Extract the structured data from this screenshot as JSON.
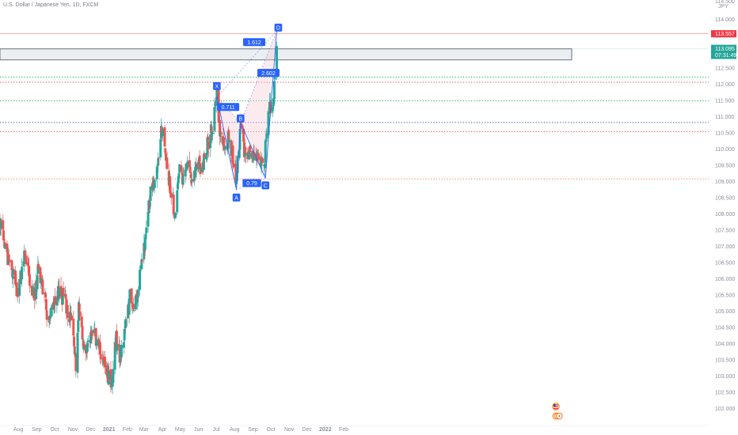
{
  "header": {
    "symbol_name": "U.S. Dollar / Japanese Yen",
    "interval": "1D",
    "exchange": "FXCM",
    "separator": ", "
  },
  "price_axis": {
    "currency_label": "JPY",
    "top_partial_label": "114.500",
    "tick_labels": [
      "114.000",
      "113.500",
      "113.000",
      "112.500",
      "112.000",
      "111.500",
      "111.000",
      "110.500",
      "110.000",
      "109.500",
      "109.000",
      "108.500",
      "108.000",
      "107.500",
      "107.000",
      "106.500",
      "106.000",
      "105.500",
      "105.000",
      "104.500",
      "104.000",
      "103.500",
      "103.000",
      "102.500",
      "102.000"
    ],
    "tick_values": [
      114.0,
      113.5,
      113.0,
      112.5,
      112.0,
      111.5,
      111.0,
      110.5,
      110.0,
      109.5,
      109.0,
      108.5,
      108.0,
      107.5,
      107.0,
      106.5,
      106.0,
      105.5,
      105.0,
      104.5,
      104.0,
      103.5,
      103.0,
      102.5,
      102.0
    ],
    "target_badge": {
      "label": "113.557",
      "value": 113.557,
      "color": "#f23645"
    },
    "last_price_badge": {
      "label": "113.095",
      "countdown": "07:31:49",
      "value": 113.095,
      "color": "#26a69a"
    }
  },
  "time_axis": {
    "labels": [
      "Aug",
      "Sep",
      "Oct",
      "Nov",
      "Dec",
      "2021",
      "Feb",
      "Mar",
      "Apr",
      "May",
      "Jun",
      "Jul",
      "Aug",
      "Sep",
      "Oct",
      "Nov",
      "Dec",
      "2022",
      "Feb"
    ],
    "bold_labels": [
      "2021",
      "2022"
    ]
  },
  "colors": {
    "up_candle": "#26a69a",
    "down_candle": "#ef5350",
    "pattern_line": "#2962ff",
    "pattern_fill": "#f7c6cf",
    "point_label_bg": "#2962ff",
    "green_level": "#00b050",
    "red_level": "#f23645",
    "blue_level": "#3346c8",
    "orange_level": "#ff7a45",
    "target_line": "#f2a095",
    "axis_text": "#8a8e99"
  },
  "horizontal_levels": [
    {
      "price": 113.557,
      "style": "solid",
      "color_key": "target_line"
    },
    {
      "price": 112.22,
      "style": "dotted",
      "color_key": "green_level"
    },
    {
      "price": 112.06,
      "style": "dotted",
      "color_key": "red_level"
    },
    {
      "price": 111.49,
      "style": "dotted",
      "color_key": "green_level"
    },
    {
      "price": 110.82,
      "style": "dotted",
      "color_key": "blue_level"
    },
    {
      "price": 110.54,
      "style": "dotted",
      "color_key": "red_level"
    },
    {
      "price": 109.08,
      "style": "dotted",
      "color_key": "orange_level"
    }
  ],
  "price_zone": {
    "high": 113.09,
    "low": 112.92
  },
  "chart_data": {
    "type": "candlestick",
    "instrument": "USD/JPY",
    "interval": "1D",
    "source": "FXCM",
    "y_axis_range": [
      101.6,
      114.7
    ],
    "x_axis_range": [
      "2020-07-01",
      "2022-02-28"
    ],
    "close_path": [
      [
        "2020-07-01",
        107.6
      ],
      [
        "2020-07-06",
        107.3
      ],
      [
        "2020-07-10",
        106.9
      ],
      [
        "2020-07-20",
        106.4
      ],
      [
        "2020-07-31",
        105.4
      ],
      [
        "2020-08-07",
        106.2
      ],
      [
        "2020-08-13",
        106.8
      ],
      [
        "2020-08-21",
        105.9
      ],
      [
        "2020-08-28",
        105.4
      ],
      [
        "2020-09-03",
        106.2
      ],
      [
        "2020-09-09",
        106.0
      ],
      [
        "2020-09-21",
        104.6
      ],
      [
        "2020-09-30",
        105.4
      ],
      [
        "2020-10-09",
        105.6
      ],
      [
        "2020-10-19",
        105.3
      ],
      [
        "2020-10-30",
        104.6
      ],
      [
        "2020-11-06",
        103.4
      ],
      [
        "2020-11-11",
        105.2
      ],
      [
        "2020-11-20",
        103.8
      ],
      [
        "2020-11-30",
        104.2
      ],
      [
        "2020-12-10",
        104.2
      ],
      [
        "2020-12-21",
        103.5
      ],
      [
        "2021-01-06",
        102.7
      ],
      [
        "2021-01-12",
        104.2
      ],
      [
        "2021-01-20",
        103.6
      ],
      [
        "2021-01-29",
        104.6
      ],
      [
        "2021-02-05",
        105.4
      ],
      [
        "2021-02-12",
        104.9
      ],
      [
        "2021-02-18",
        105.6
      ],
      [
        "2021-02-25",
        106.4
      ],
      [
        "2021-03-03",
        107.2
      ],
      [
        "2021-03-12",
        108.8
      ],
      [
        "2021-03-19",
        108.8
      ],
      [
        "2021-03-26",
        109.7
      ],
      [
        "2021-03-31",
        110.7
      ],
      [
        "2021-04-07",
        109.7
      ],
      [
        "2021-04-15",
        108.8
      ],
      [
        "2021-04-23",
        107.9
      ],
      [
        "2021-04-30",
        109.3
      ],
      [
        "2021-05-06",
        109.1
      ],
      [
        "2021-05-13",
        109.6
      ],
      [
        "2021-05-21",
        108.9
      ],
      [
        "2021-05-31",
        109.6
      ],
      [
        "2021-06-04",
        109.5
      ],
      [
        "2021-06-11",
        109.7
      ],
      [
        "2021-06-17",
        110.2
      ],
      [
        "2021-06-25",
        110.7
      ],
      [
        "2021-07-02",
        111.6
      ],
      [
        "2021-07-09",
        110.2
      ],
      [
        "2021-07-16",
        110.1
      ],
      [
        "2021-07-21",
        110.3
      ],
      [
        "2021-07-30",
        109.7
      ],
      [
        "2021-08-04",
        109.1
      ],
      [
        "2021-08-11",
        110.7
      ],
      [
        "2021-08-19",
        109.7
      ],
      [
        "2021-08-27",
        110.0
      ],
      [
        "2021-09-03",
        109.7
      ],
      [
        "2021-09-10",
        109.9
      ],
      [
        "2021-09-20",
        109.4
      ],
      [
        "2021-09-24",
        110.7
      ],
      [
        "2021-09-30",
        111.3
      ],
      [
        "2021-10-05",
        111.5
      ],
      [
        "2021-10-08",
        112.2
      ],
      [
        "2021-10-11",
        113.1
      ]
    ],
    "harmonic_pattern": {
      "points": [
        {
          "name": "X",
          "date": "2021-07-02",
          "price": 111.6
        },
        {
          "name": "A",
          "date": "2021-08-04",
          "price": 108.75
        },
        {
          "name": "B",
          "date": "2021-08-11",
          "price": 110.8
        },
        {
          "name": "C",
          "date": "2021-09-22",
          "price": 109.1
        },
        {
          "name": "D",
          "date": "2021-10-11",
          "price": 113.65
        }
      ],
      "ratios": [
        {
          "label": "0.711",
          "date": "2021-07-21",
          "price": 111.3
        },
        {
          "label": "0.79",
          "date": "2021-08-30",
          "price": 108.95
        },
        {
          "label": "1.612",
          "date": "2021-09-03",
          "price": 113.3
        },
        {
          "label": "2.602",
          "date": "2021-09-27",
          "price": 112.35
        }
      ]
    }
  }
}
